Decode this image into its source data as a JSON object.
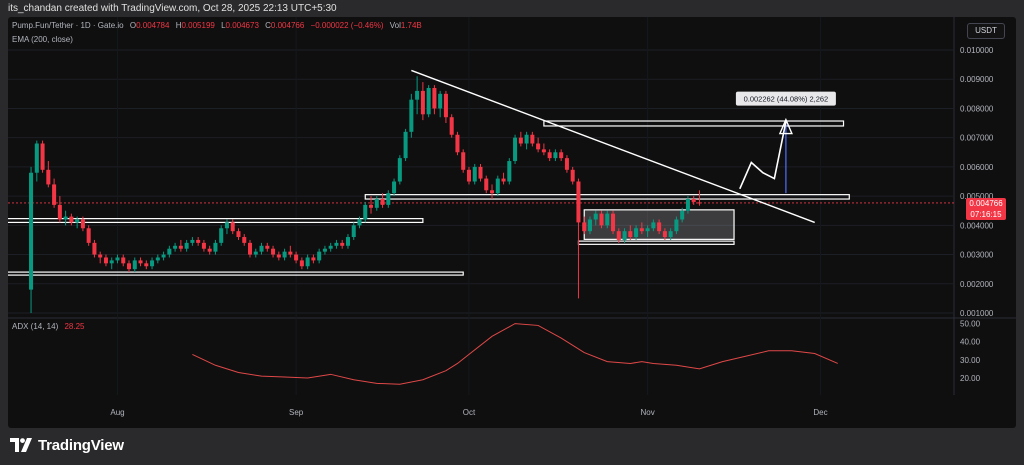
{
  "caption": "its_chandan created with TradingView.com, Oct 28, 2025 22:13 UTC+5:30",
  "legend": {
    "symbol": "Pump.Fun/Tether · 1D · Gate.io",
    "open_label": "O",
    "open": "0.004784",
    "high_label": "H",
    "high": "0.005199",
    "low_label": "L",
    "low": "0.004673",
    "close_label": "C",
    "close": "0.004766",
    "change": "−0.000022 (−0.46%)",
    "vol_label": "Vol",
    "vol": "1.74B",
    "indicator": "EMA (200, close)"
  },
  "adx_legend": {
    "label": "ADX (14, 14)",
    "value": "28.25"
  },
  "currency": "USDT",
  "price_tag": {
    "price": "0.004766",
    "countdown": "07:16:15"
  },
  "projection_label": "0.002262 (44.08%) 2,262",
  "brand": {
    "name": "TradingView",
    "icon": "tradingview-logo-icon"
  },
  "colors": {
    "up": "#089981",
    "down": "#f23645",
    "adx_line": "#e04848",
    "box": "#ffffff",
    "trendline": "#ffffff",
    "projection_arrow": "#4f6fff"
  },
  "chart_data": [
    {
      "type": "candlestick",
      "xlabel": "",
      "ylabel": "",
      "x_ticks": [
        "Aug",
        "Sep",
        "Oct",
        "Nov",
        "Dec"
      ],
      "y_ticks": [
        "0.010000",
        "0.009000",
        "0.008000",
        "0.007000",
        "0.006000",
        "0.005000",
        "0.004000",
        "0.003000",
        "0.002000",
        "0.001000"
      ],
      "ylim": [
        0.001,
        0.0103
      ],
      "x_range_days": [
        -4,
        160
      ],
      "candles": [
        {
          "d": 0,
          "o": 0.0018,
          "h": 0.006,
          "l": 0.001,
          "c": 0.0058
        },
        {
          "d": 1,
          "o": 0.0058,
          "h": 0.0069,
          "l": 0.0055,
          "c": 0.0068
        },
        {
          "d": 2,
          "o": 0.0068,
          "h": 0.0069,
          "l": 0.0058,
          "c": 0.0059
        },
        {
          "d": 3,
          "o": 0.0059,
          "h": 0.0062,
          "l": 0.0053,
          "c": 0.0054
        },
        {
          "d": 4,
          "o": 0.0054,
          "h": 0.0056,
          "l": 0.0046,
          "c": 0.0047
        },
        {
          "d": 5,
          "o": 0.0047,
          "h": 0.005,
          "l": 0.0041,
          "c": 0.0042
        },
        {
          "d": 6,
          "o": 0.0042,
          "h": 0.0045,
          "l": 0.004,
          "c": 0.0043
        },
        {
          "d": 7,
          "o": 0.0043,
          "h": 0.0044,
          "l": 0.004,
          "c": 0.0041
        },
        {
          "d": 8,
          "o": 0.0041,
          "h": 0.0043,
          "l": 0.0039,
          "c": 0.0042
        },
        {
          "d": 9,
          "o": 0.0042,
          "h": 0.0043,
          "l": 0.0038,
          "c": 0.0039
        },
        {
          "d": 10,
          "o": 0.0039,
          "h": 0.004,
          "l": 0.0033,
          "c": 0.0034
        },
        {
          "d": 11,
          "o": 0.0034,
          "h": 0.0035,
          "l": 0.0029,
          "c": 0.003
        },
        {
          "d": 12,
          "o": 0.003,
          "h": 0.0031,
          "l": 0.0027,
          "c": 0.0029
        },
        {
          "d": 13,
          "o": 0.0029,
          "h": 0.003,
          "l": 0.0026,
          "c": 0.0027
        },
        {
          "d": 14,
          "o": 0.0027,
          "h": 0.0029,
          "l": 0.0025,
          "c": 0.0028
        },
        {
          "d": 15,
          "o": 0.0028,
          "h": 0.003,
          "l": 0.0027,
          "c": 0.0029
        },
        {
          "d": 16,
          "o": 0.0029,
          "h": 0.003,
          "l": 0.0026,
          "c": 0.0027
        },
        {
          "d": 17,
          "o": 0.0027,
          "h": 0.0028,
          "l": 0.0024,
          "c": 0.0025
        },
        {
          "d": 18,
          "o": 0.0025,
          "h": 0.0029,
          "l": 0.0024,
          "c": 0.0028
        },
        {
          "d": 19,
          "o": 0.0028,
          "h": 0.0029,
          "l": 0.0026,
          "c": 0.0027
        },
        {
          "d": 20,
          "o": 0.0027,
          "h": 0.0028,
          "l": 0.0025,
          "c": 0.0026
        },
        {
          "d": 21,
          "o": 0.0026,
          "h": 0.0029,
          "l": 0.0025,
          "c": 0.0028
        },
        {
          "d": 22,
          "o": 0.0028,
          "h": 0.003,
          "l": 0.0027,
          "c": 0.0029
        },
        {
          "d": 23,
          "o": 0.0029,
          "h": 0.0031,
          "l": 0.0028,
          "c": 0.003
        },
        {
          "d": 24,
          "o": 0.003,
          "h": 0.0033,
          "l": 0.0029,
          "c": 0.0032
        },
        {
          "d": 25,
          "o": 0.0032,
          "h": 0.0034,
          "l": 0.0031,
          "c": 0.0033
        },
        {
          "d": 26,
          "o": 0.0033,
          "h": 0.0035,
          "l": 0.0031,
          "c": 0.0032
        },
        {
          "d": 27,
          "o": 0.0032,
          "h": 0.0035,
          "l": 0.0031,
          "c": 0.0034
        },
        {
          "d": 28,
          "o": 0.0034,
          "h": 0.0036,
          "l": 0.0033,
          "c": 0.0035
        },
        {
          "d": 29,
          "o": 0.0035,
          "h": 0.0036,
          "l": 0.0033,
          "c": 0.0034
        },
        {
          "d": 30,
          "o": 0.0034,
          "h": 0.0035,
          "l": 0.0031,
          "c": 0.0032
        },
        {
          "d": 31,
          "o": 0.0032,
          "h": 0.0033,
          "l": 0.003,
          "c": 0.0031
        },
        {
          "d": 32,
          "o": 0.0031,
          "h": 0.0035,
          "l": 0.003,
          "c": 0.0034
        },
        {
          "d": 33,
          "o": 0.0034,
          "h": 0.004,
          "l": 0.0033,
          "c": 0.0039
        },
        {
          "d": 34,
          "o": 0.0039,
          "h": 0.0042,
          "l": 0.0037,
          "c": 0.0041
        },
        {
          "d": 35,
          "o": 0.0041,
          "h": 0.0042,
          "l": 0.0037,
          "c": 0.0038
        },
        {
          "d": 36,
          "o": 0.0038,
          "h": 0.0039,
          "l": 0.0035,
          "c": 0.0036
        },
        {
          "d": 37,
          "o": 0.0036,
          "h": 0.0037,
          "l": 0.0033,
          "c": 0.0034
        },
        {
          "d": 38,
          "o": 0.0034,
          "h": 0.0035,
          "l": 0.0029,
          "c": 0.003
        },
        {
          "d": 39,
          "o": 0.003,
          "h": 0.0032,
          "l": 0.0029,
          "c": 0.0031
        },
        {
          "d": 40,
          "o": 0.0031,
          "h": 0.0034,
          "l": 0.003,
          "c": 0.0033
        },
        {
          "d": 41,
          "o": 0.0033,
          "h": 0.0034,
          "l": 0.0031,
          "c": 0.0032
        },
        {
          "d": 42,
          "o": 0.0032,
          "h": 0.0033,
          "l": 0.0029,
          "c": 0.003
        },
        {
          "d": 43,
          "o": 0.003,
          "h": 0.0031,
          "l": 0.0028,
          "c": 0.0029
        },
        {
          "d": 44,
          "o": 0.0029,
          "h": 0.0032,
          "l": 0.0028,
          "c": 0.0031
        },
        {
          "d": 45,
          "o": 0.0031,
          "h": 0.0033,
          "l": 0.0029,
          "c": 0.003
        },
        {
          "d": 46,
          "o": 0.003,
          "h": 0.0031,
          "l": 0.0027,
          "c": 0.0028
        },
        {
          "d": 47,
          "o": 0.0028,
          "h": 0.0029,
          "l": 0.0025,
          "c": 0.0026
        },
        {
          "d": 48,
          "o": 0.0026,
          "h": 0.003,
          "l": 0.0025,
          "c": 0.0029
        },
        {
          "d": 49,
          "o": 0.0029,
          "h": 0.003,
          "l": 0.0027,
          "c": 0.0028
        },
        {
          "d": 50,
          "o": 0.0028,
          "h": 0.0032,
          "l": 0.0027,
          "c": 0.0031
        },
        {
          "d": 51,
          "o": 0.0031,
          "h": 0.0033,
          "l": 0.003,
          "c": 0.0032
        },
        {
          "d": 52,
          "o": 0.0032,
          "h": 0.0034,
          "l": 0.0031,
          "c": 0.0033
        },
        {
          "d": 53,
          "o": 0.0033,
          "h": 0.0035,
          "l": 0.0032,
          "c": 0.0034
        },
        {
          "d": 54,
          "o": 0.0034,
          "h": 0.0035,
          "l": 0.0032,
          "c": 0.0033
        },
        {
          "d": 55,
          "o": 0.0033,
          "h": 0.0037,
          "l": 0.0032,
          "c": 0.0036
        },
        {
          "d": 56,
          "o": 0.0036,
          "h": 0.0041,
          "l": 0.0035,
          "c": 0.004
        },
        {
          "d": 57,
          "o": 0.004,
          "h": 0.0043,
          "l": 0.0039,
          "c": 0.0042
        },
        {
          "d": 58,
          "o": 0.0042,
          "h": 0.0048,
          "l": 0.0041,
          "c": 0.0047
        },
        {
          "d": 59,
          "o": 0.0047,
          "h": 0.005,
          "l": 0.0044,
          "c": 0.0046
        },
        {
          "d": 60,
          "o": 0.0046,
          "h": 0.005,
          "l": 0.0045,
          "c": 0.0049
        },
        {
          "d": 61,
          "o": 0.0049,
          "h": 0.0051,
          "l": 0.0046,
          "c": 0.0047
        },
        {
          "d": 62,
          "o": 0.0047,
          "h": 0.0052,
          "l": 0.0046,
          "c": 0.0051
        },
        {
          "d": 63,
          "o": 0.0051,
          "h": 0.0056,
          "l": 0.005,
          "c": 0.0055
        },
        {
          "d": 64,
          "o": 0.0055,
          "h": 0.0064,
          "l": 0.0054,
          "c": 0.0063
        },
        {
          "d": 65,
          "o": 0.0063,
          "h": 0.0073,
          "l": 0.0062,
          "c": 0.0072
        },
        {
          "d": 66,
          "o": 0.0072,
          "h": 0.0085,
          "l": 0.007,
          "c": 0.0083
        },
        {
          "d": 67,
          "o": 0.0083,
          "h": 0.0091,
          "l": 0.0078,
          "c": 0.0086
        },
        {
          "d": 68,
          "o": 0.0086,
          "h": 0.0089,
          "l": 0.0076,
          "c": 0.0078
        },
        {
          "d": 69,
          "o": 0.0078,
          "h": 0.0088,
          "l": 0.0077,
          "c": 0.0087
        },
        {
          "d": 70,
          "o": 0.0087,
          "h": 0.0088,
          "l": 0.0078,
          "c": 0.008
        },
        {
          "d": 71,
          "o": 0.008,
          "h": 0.0086,
          "l": 0.0077,
          "c": 0.0085
        },
        {
          "d": 72,
          "o": 0.0085,
          "h": 0.0086,
          "l": 0.0075,
          "c": 0.0077
        },
        {
          "d": 73,
          "o": 0.0077,
          "h": 0.0078,
          "l": 0.007,
          "c": 0.0071
        },
        {
          "d": 74,
          "o": 0.0071,
          "h": 0.0072,
          "l": 0.0064,
          "c": 0.0065
        },
        {
          "d": 75,
          "o": 0.0065,
          "h": 0.0066,
          "l": 0.0058,
          "c": 0.0059
        },
        {
          "d": 76,
          "o": 0.0059,
          "h": 0.006,
          "l": 0.0054,
          "c": 0.0055
        },
        {
          "d": 77,
          "o": 0.0055,
          "h": 0.0061,
          "l": 0.0054,
          "c": 0.006
        },
        {
          "d": 78,
          "o": 0.006,
          "h": 0.0061,
          "l": 0.0055,
          "c": 0.0056
        },
        {
          "d": 79,
          "o": 0.0056,
          "h": 0.0057,
          "l": 0.0051,
          "c": 0.0052
        },
        {
          "d": 80,
          "o": 0.0052,
          "h": 0.0054,
          "l": 0.0049,
          "c": 0.0051
        },
        {
          "d": 81,
          "o": 0.0051,
          "h": 0.0057,
          "l": 0.005,
          "c": 0.0056
        },
        {
          "d": 82,
          "o": 0.0056,
          "h": 0.0058,
          "l": 0.0054,
          "c": 0.0055
        },
        {
          "d": 83,
          "o": 0.0055,
          "h": 0.0063,
          "l": 0.0054,
          "c": 0.0062
        },
        {
          "d": 84,
          "o": 0.0062,
          "h": 0.0071,
          "l": 0.0061,
          "c": 0.007
        },
        {
          "d": 85,
          "o": 0.007,
          "h": 0.0072,
          "l": 0.0067,
          "c": 0.0068
        },
        {
          "d": 86,
          "o": 0.0068,
          "h": 0.0072,
          "l": 0.0066,
          "c": 0.0071
        },
        {
          "d": 87,
          "o": 0.0071,
          "h": 0.0072,
          "l": 0.0067,
          "c": 0.0068
        },
        {
          "d": 88,
          "o": 0.0068,
          "h": 0.007,
          "l": 0.0065,
          "c": 0.0066
        },
        {
          "d": 89,
          "o": 0.0066,
          "h": 0.0068,
          "l": 0.0064,
          "c": 0.0065
        },
        {
          "d": 90,
          "o": 0.0065,
          "h": 0.0066,
          "l": 0.0062,
          "c": 0.0063
        },
        {
          "d": 91,
          "o": 0.0063,
          "h": 0.0066,
          "l": 0.0062,
          "c": 0.0065
        },
        {
          "d": 92,
          "o": 0.0065,
          "h": 0.0066,
          "l": 0.0062,
          "c": 0.0063
        },
        {
          "d": 93,
          "o": 0.0063,
          "h": 0.0064,
          "l": 0.0058,
          "c": 0.0059
        },
        {
          "d": 94,
          "o": 0.0059,
          "h": 0.006,
          "l": 0.0054,
          "c": 0.0055
        },
        {
          "d": 95,
          "o": 0.0055,
          "h": 0.0056,
          "l": 0.0015,
          "c": 0.0041
        },
        {
          "d": 96,
          "o": 0.0041,
          "h": 0.0043,
          "l": 0.0037,
          "c": 0.0038
        },
        {
          "d": 97,
          "o": 0.0038,
          "h": 0.0043,
          "l": 0.0037,
          "c": 0.0042
        },
        {
          "d": 98,
          "o": 0.0042,
          "h": 0.0045,
          "l": 0.004,
          "c": 0.0044
        },
        {
          "d": 99,
          "o": 0.0044,
          "h": 0.0045,
          "l": 0.0039,
          "c": 0.004
        },
        {
          "d": 100,
          "o": 0.004,
          "h": 0.0045,
          "l": 0.0039,
          "c": 0.0044
        },
        {
          "d": 101,
          "o": 0.0044,
          "h": 0.0045,
          "l": 0.0037,
          "c": 0.0038
        },
        {
          "d": 102,
          "o": 0.0038,
          "h": 0.0039,
          "l": 0.0034,
          "c": 0.0035
        },
        {
          "d": 103,
          "o": 0.0035,
          "h": 0.0039,
          "l": 0.0034,
          "c": 0.0038
        },
        {
          "d": 104,
          "o": 0.0038,
          "h": 0.004,
          "l": 0.0035,
          "c": 0.0036
        },
        {
          "d": 105,
          "o": 0.0036,
          "h": 0.004,
          "l": 0.0035,
          "c": 0.0039
        },
        {
          "d": 106,
          "o": 0.0039,
          "h": 0.0041,
          "l": 0.0037,
          "c": 0.0038
        },
        {
          "d": 107,
          "o": 0.0038,
          "h": 0.004,
          "l": 0.0036,
          "c": 0.0039
        },
        {
          "d": 108,
          "o": 0.0039,
          "h": 0.0042,
          "l": 0.0038,
          "c": 0.0041
        },
        {
          "d": 109,
          "o": 0.0041,
          "h": 0.0042,
          "l": 0.0037,
          "c": 0.0038
        },
        {
          "d": 110,
          "o": 0.0038,
          "h": 0.0039,
          "l": 0.0035,
          "c": 0.0036
        },
        {
          "d": 111,
          "o": 0.0036,
          "h": 0.0039,
          "l": 0.0035,
          "c": 0.0038
        },
        {
          "d": 112,
          "o": 0.0038,
          "h": 0.0043,
          "l": 0.0037,
          "c": 0.0042
        },
        {
          "d": 113,
          "o": 0.0042,
          "h": 0.0046,
          "l": 0.0041,
          "c": 0.0045
        },
        {
          "d": 114,
          "o": 0.0045,
          "h": 0.005,
          "l": 0.0044,
          "c": 0.0049
        },
        {
          "d": 115,
          "o": 0.0049,
          "h": 0.005,
          "l": 0.0047,
          "c": 0.0048
        },
        {
          "d": 116,
          "o": 0.004784,
          "h": 0.005199,
          "l": 0.004673,
          "c": 0.004766
        }
      ],
      "annotations": {
        "trendline": [
          [
            66,
            0.0093
          ],
          [
            136,
            0.0041
          ]
        ],
        "boxes": [
          {
            "x0": -17,
            "x1": 68,
            "y0": 0.0041,
            "y1": 0.00423
          },
          {
            "x0": -8,
            "x1": 75,
            "y0": 0.0023,
            "y1": 0.0024
          },
          {
            "x0": 58,
            "x1": 142,
            "y0": 0.0049,
            "y1": 0.00505
          },
          {
            "x0": 89,
            "x1": 141,
            "y0": 0.0074,
            "y1": 0.00757
          },
          {
            "x0": 96,
            "x1": 122,
            "y0": 0.00352,
            "y1": 0.00453
          },
          {
            "x0": 95,
            "x1": 122,
            "y0": 0.00335,
            "y1": 0.00346
          }
        ],
        "projection_path": [
          [
            123,
            0.00525
          ],
          [
            125,
            0.00615
          ],
          [
            127,
            0.0058
          ],
          [
            129,
            0.0056
          ],
          [
            131,
            0.00755
          ]
        ],
        "projection_measure": {
          "x": 131,
          "y0": 0.0051,
          "y1": 0.00755
        }
      }
    },
    {
      "type": "line",
      "name": "ADX (14, 14)",
      "y_ticks": [
        "50.00",
        "40.00",
        "30.00",
        "20.00"
      ],
      "ylim": [
        15,
        52
      ],
      "x": [
        28,
        32,
        36,
        40,
        44,
        48,
        52,
        56,
        60,
        64,
        68,
        72,
        74,
        76,
        80,
        84,
        88,
        92,
        96,
        100,
        104,
        106,
        108,
        112,
        116,
        120,
        124,
        128,
        132,
        136,
        140
      ],
      "y": [
        33,
        27,
        23,
        21,
        20.5,
        20,
        22,
        19,
        17,
        16.5,
        19,
        24,
        28,
        33,
        43,
        50,
        49,
        42,
        34,
        29,
        28,
        29,
        28,
        27,
        25,
        29,
        32,
        35,
        35,
        33.5,
        28
      ]
    }
  ]
}
